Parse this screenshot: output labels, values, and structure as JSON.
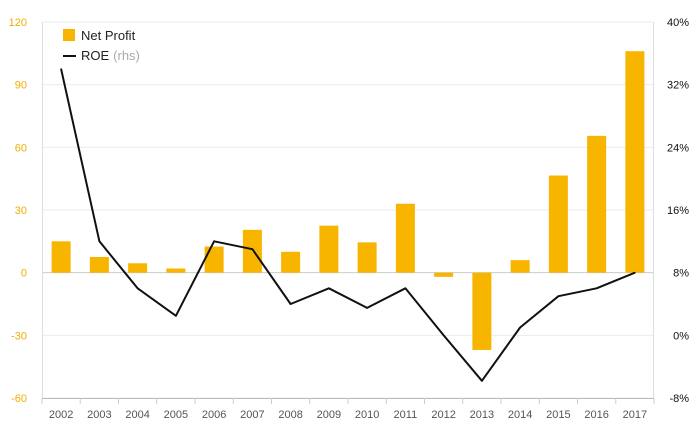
{
  "chart_data": {
    "type": "bar",
    "categories": [
      "2002",
      "2003",
      "2004",
      "2005",
      "2006",
      "2007",
      "2008",
      "2009",
      "2010",
      "2011",
      "2012",
      "2013",
      "2014",
      "2015",
      "2016",
      "2017"
    ],
    "series": [
      {
        "name": "Net Profit",
        "type": "bar",
        "axis": "left",
        "color": "#f7b500",
        "values": [
          15,
          7.5,
          4.5,
          2,
          12.5,
          20.5,
          10,
          22.5,
          14.5,
          33,
          -2,
          -37,
          6,
          46.5,
          65.5,
          106
        ]
      },
      {
        "name": "ROE",
        "name_suffix": "(rhs)",
        "type": "line",
        "axis": "right",
        "color": "#111111",
        "values": [
          34,
          12,
          6,
          2.5,
          12,
          11,
          4,
          6,
          3.5,
          6,
          0,
          -5.8,
          1,
          5,
          6,
          8
        ]
      }
    ],
    "left_axis": {
      "ylim": [
        -60,
        120
      ],
      "ticks": [
        "120",
        "90",
        "60",
        "30",
        "0",
        "-30",
        "-60"
      ],
      "tick_values": [
        120,
        90,
        60,
        30,
        0,
        -30,
        -60
      ]
    },
    "right_axis": {
      "ylim": [
        -8,
        40
      ],
      "ticks": [
        "40%",
        "32%",
        "24%",
        "16%",
        "8%",
        "0%",
        "-8%"
      ],
      "tick_values": [
        40,
        32,
        24,
        16,
        8,
        0,
        -8
      ]
    },
    "legend": {
      "position": "top-left",
      "items": [
        "Net Profit",
        "ROE"
      ],
      "roe_suffix": "(rhs)"
    },
    "grid": true,
    "title": "",
    "xlabel": "",
    "ylabel": ""
  }
}
